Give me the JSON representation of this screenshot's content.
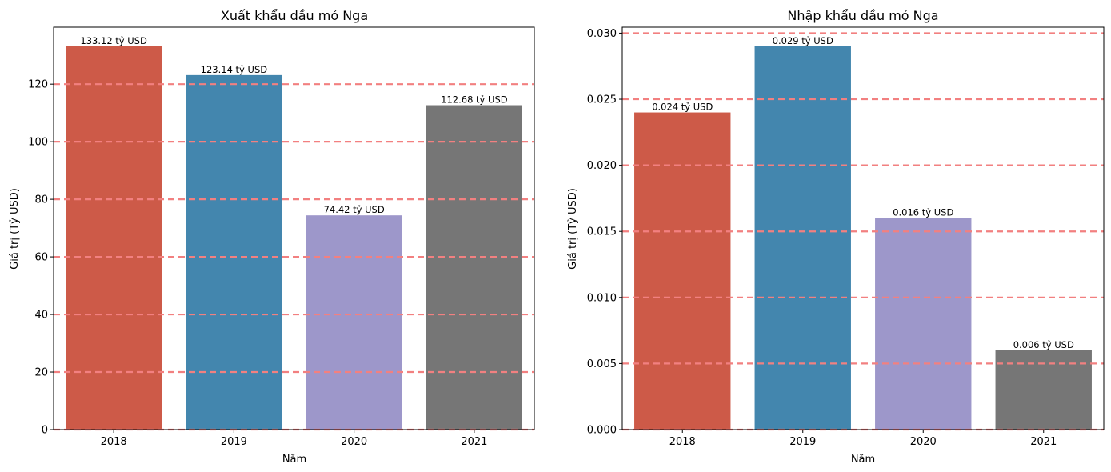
{
  "chart_data": [
    {
      "type": "bar",
      "title": "Xuất khẩu dầu mỏ Nga",
      "xlabel": "Năm",
      "ylabel": "Giá trị (Tỷ USD)",
      "categories": [
        "2018",
        "2019",
        "2020",
        "2021"
      ],
      "values": [
        133.12,
        123.14,
        74.42,
        112.68
      ],
      "data_labels": [
        "133.12 tỷ USD",
        "123.14 tỷ USD",
        "74.42 tỷ USD",
        "112.68 tỷ USD"
      ],
      "colors": [
        "#cd5a48",
        "#4386ae",
        "#9d97ca",
        "#767676"
      ],
      "ylim": [
        0,
        139.776
      ],
      "yticks": [
        0,
        20,
        40,
        60,
        80,
        100,
        120
      ],
      "ytick_labels": [
        "0",
        "20",
        "40",
        "60",
        "80",
        "100",
        "120"
      ],
      "grid": "horizontal dashed",
      "grid_color": "#f28080"
    },
    {
      "type": "bar",
      "title": "Nhập khẩu dầu mỏ Nga",
      "xlabel": "Năm",
      "ylabel": "Giá trị (Tỷ USD)",
      "categories": [
        "2018",
        "2019",
        "2020",
        "2021"
      ],
      "values": [
        0.024,
        0.029,
        0.016,
        0.006
      ],
      "data_labels": [
        "0.024 tỷ USD",
        "0.029 tỷ USD",
        "0.016 tỷ USD",
        "0.006 tỷ USD"
      ],
      "colors": [
        "#cd5a48",
        "#4386ae",
        "#9d97ca",
        "#767676"
      ],
      "ylim": [
        0,
        0.03045
      ],
      "yticks": [
        0,
        0.005,
        0.01,
        0.015,
        0.02,
        0.025,
        0.03
      ],
      "ytick_labels": [
        "0.000",
        "0.005",
        "0.010",
        "0.015",
        "0.020",
        "0.025",
        "0.030"
      ],
      "grid": "horizontal dashed",
      "grid_color": "#f28080"
    }
  ]
}
